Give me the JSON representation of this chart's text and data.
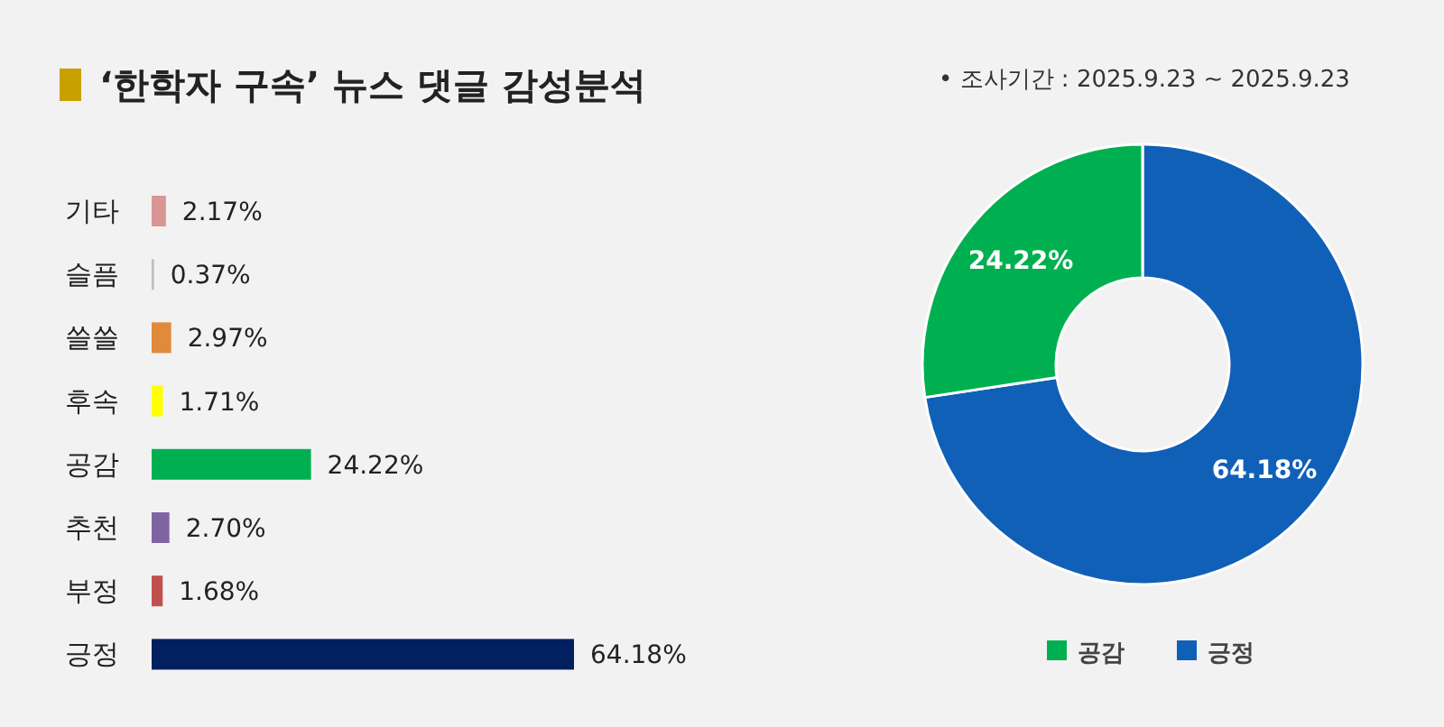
{
  "chart_data": [
    {
      "type": "bar",
      "orientation": "horizontal",
      "title": "‘한학자 구속’ 뉴스 댓글 감성분석",
      "categories": [
        "기타",
        "슬픔",
        "쓸쓸",
        "후속",
        "공감",
        "추천",
        "부정",
        "긍정"
      ],
      "values": [
        2.17,
        0.37,
        2.97,
        1.71,
        24.22,
        2.7,
        1.68,
        64.18
      ],
      "value_labels": [
        "2.17%",
        "0.37%",
        "2.97%",
        "1.71%",
        "24.22%",
        "2.70%",
        "1.68%",
        "64.18%"
      ],
      "colors": [
        "#d99694",
        "#bfbfbf",
        "#e08a3c",
        "#ffff00",
        "#00b050",
        "#8064a2",
        "#c0504d",
        "#002060"
      ]
    },
    {
      "type": "donut",
      "annotations": [
        "•   조사기간 : 2025.9.23 ~ 2025.9.23"
      ],
      "categories": [
        "공감",
        "긍정"
      ],
      "values": [
        24.22,
        64.18
      ],
      "value_labels": [
        "24.22%",
        "64.18%"
      ],
      "colors": [
        "#00b050",
        "#1060b8"
      ],
      "legend": "bottom"
    }
  ]
}
